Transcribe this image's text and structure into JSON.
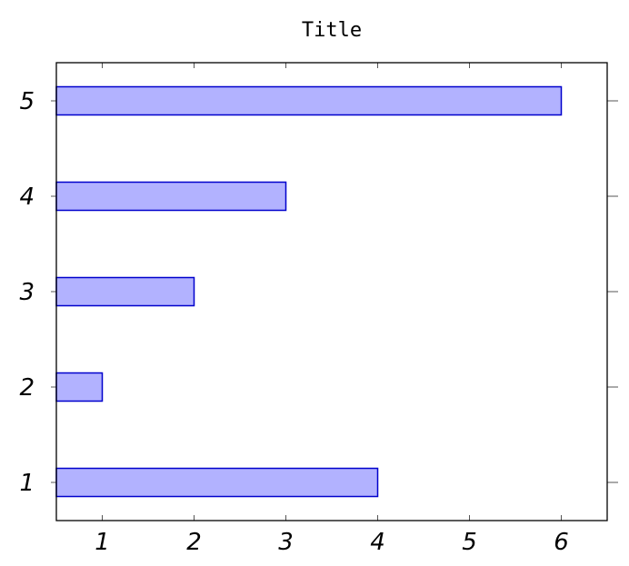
{
  "chart_data": {
    "type": "bar",
    "orientation": "horizontal",
    "title": "Title",
    "xlabel": "",
    "ylabel": "",
    "categories": [
      "1",
      "2",
      "3",
      "4",
      "5"
    ],
    "values": [
      4,
      1,
      2,
      3,
      6
    ],
    "x_ticks": [
      "1",
      "2",
      "3",
      "4",
      "5",
      "6"
    ],
    "y_ticks": [
      "1",
      "2",
      "3",
      "4",
      "5"
    ],
    "xlim": [
      0.5,
      6.5
    ],
    "ylim": [
      0.6,
      5.4
    ],
    "grid": false,
    "legend": "none",
    "colors": {
      "bar_fill": "#b2b2ff",
      "bar_stroke": "#0000cc",
      "axis": "#000000",
      "tick": "#555555"
    }
  }
}
